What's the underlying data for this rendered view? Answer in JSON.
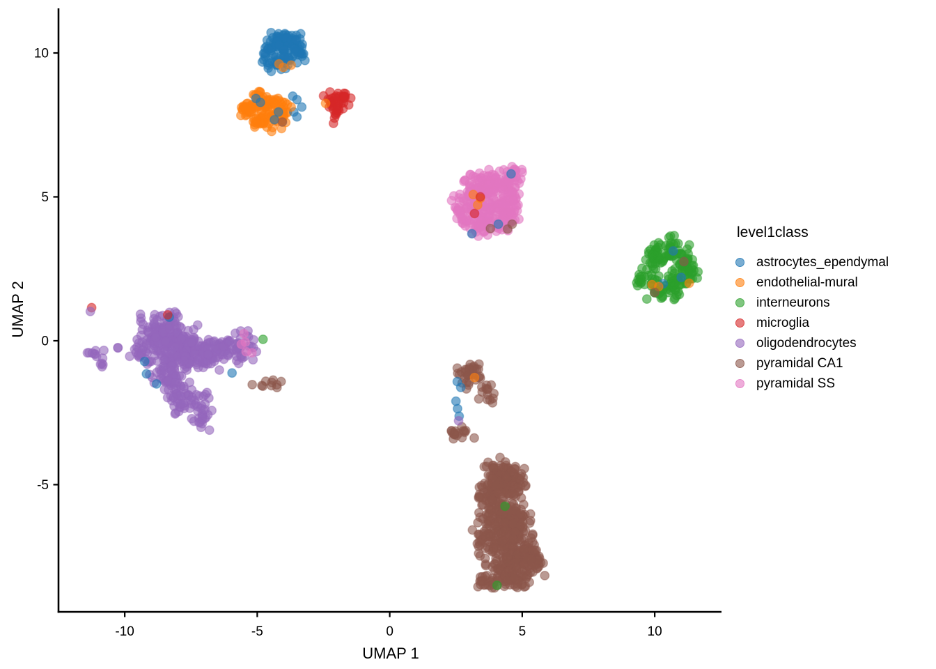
{
  "figure": {
    "background": "#ffffff"
  },
  "chart_data": {
    "type": "scatter",
    "title": "",
    "xlabel": "UMAP 1",
    "ylabel": "UMAP 2",
    "xlim": [
      -12.5,
      12.52
    ],
    "ylim": [
      -9.42,
      11.55
    ],
    "x_ticks": [
      -10,
      -5,
      0,
      5,
      10
    ],
    "y_ticks": [
      10,
      5,
      0,
      -5
    ],
    "grid": false,
    "legend_title": "level1class",
    "legend_position": "right",
    "point_alpha": 0.6,
    "point_stroke_alpha": 0.45,
    "series": [
      {
        "name": "astrocytes_ependymal",
        "color": "#1f77b4",
        "cluster_blobs": [
          [
            -4.55,
            10.05,
            0.14,
            0.32,
            28
          ],
          [
            -4.15,
            10.45,
            0.18,
            0.15,
            25
          ],
          [
            -3.8,
            10.3,
            0.22,
            0.2,
            40
          ],
          [
            -3.45,
            10.05,
            0.13,
            0.22,
            20
          ],
          [
            -4.0,
            9.75,
            0.22,
            0.14,
            22
          ]
        ],
        "scattered_points": [
          [
            -5.05,
            8.42
          ],
          [
            -4.88,
            8.28
          ],
          [
            -4.2,
            7.95
          ],
          [
            -4.35,
            7.68
          ],
          [
            -3.66,
            8.5
          ],
          [
            -3.5,
            8.38
          ],
          [
            -3.62,
            7.95
          ],
          [
            -3.5,
            7.78
          ],
          [
            -3.32,
            8.12
          ],
          [
            4.58,
            5.8
          ],
          [
            4.1,
            4.05
          ],
          [
            3.1,
            3.72
          ],
          [
            10.7,
            3.12
          ],
          [
            11.0,
            2.2
          ],
          [
            10.32,
            1.98
          ],
          [
            -9.25,
            -0.72
          ],
          [
            -9.18,
            -1.15
          ],
          [
            -8.8,
            -1.5
          ],
          [
            -5.95,
            -1.12
          ],
          [
            -8.32,
            0.82
          ],
          [
            2.55,
            -1.42
          ],
          [
            2.68,
            -1.62
          ],
          [
            2.5,
            -2.1
          ],
          [
            2.56,
            -2.36
          ],
          [
            2.62,
            -2.62
          ]
        ]
      },
      {
        "name": "endothelial-mural",
        "color": "#ff7f0e",
        "cluster_blobs": [
          [
            -5.35,
            8.1,
            0.2,
            0.16,
            25
          ],
          [
            -4.8,
            8.3,
            0.22,
            0.18,
            30
          ],
          [
            -4.55,
            7.75,
            0.28,
            0.22,
            40
          ],
          [
            -4.1,
            7.95,
            0.15,
            0.25,
            22
          ],
          [
            -5.0,
            7.55,
            0.14,
            0.1,
            10
          ],
          [
            -4.4,
            8.35,
            0.12,
            0.1,
            8
          ]
        ],
        "scattered_points": [
          [
            -4.18,
            9.62
          ],
          [
            -4.02,
            9.5
          ],
          [
            -3.72,
            9.58
          ],
          [
            -2.42,
            8.25
          ],
          [
            -3.72,
            8.12
          ],
          [
            3.15,
            5.08
          ],
          [
            3.42,
            4.95
          ],
          [
            3.32,
            4.72
          ],
          [
            11.3,
            2.0
          ],
          [
            9.9,
            1.95
          ],
          [
            10.15,
            1.88
          ],
          [
            3.2,
            -1.28
          ]
        ]
      },
      {
        "name": "interneurons",
        "color": "#2ca02c",
        "cluster_blobs": [
          [
            10.55,
            3.15,
            0.28,
            0.22,
            30
          ],
          [
            10.05,
            2.75,
            0.18,
            0.22,
            18
          ],
          [
            11.0,
            2.6,
            0.25,
            0.35,
            40
          ],
          [
            9.62,
            2.1,
            0.25,
            0.2,
            22
          ],
          [
            10.35,
            1.68,
            0.3,
            0.2,
            30
          ],
          [
            10.85,
            2.0,
            0.2,
            0.18,
            18
          ],
          [
            11.4,
            2.35,
            0.12,
            0.25,
            12
          ],
          [
            9.95,
            3.0,
            0.12,
            0.12,
            8
          ]
        ],
        "scattered_points": [
          [
            4.35,
            -5.75
          ],
          [
            4.05,
            -8.5
          ],
          [
            -4.78,
            0.05
          ]
        ]
      },
      {
        "name": "microglia",
        "color": "#d62728",
        "cluster_blobs": [
          [
            -2.28,
            8.38,
            0.12,
            0.12,
            10
          ],
          [
            -1.88,
            8.28,
            0.2,
            0.17,
            20
          ],
          [
            -2.05,
            7.85,
            0.1,
            0.16,
            8
          ],
          [
            -1.65,
            8.5,
            0.08,
            0.08,
            5
          ]
        ],
        "scattered_points": [
          [
            -11.25,
            1.15
          ],
          [
            -8.38,
            0.9
          ],
          [
            3.2,
            4.42
          ],
          [
            3.42,
            5.0
          ]
        ]
      },
      {
        "name": "oligodendrocytes",
        "color": "#9467bd",
        "cluster_blobs": [
          [
            -8.7,
            0.25,
            0.38,
            0.3,
            85
          ],
          [
            -8.0,
            -0.3,
            0.5,
            0.42,
            130
          ],
          [
            -7.15,
            -0.5,
            0.42,
            0.28,
            70
          ],
          [
            -6.3,
            -0.3,
            0.38,
            0.22,
            45
          ],
          [
            -5.55,
            -0.2,
            0.28,
            0.3,
            30
          ],
          [
            -8.45,
            -1.2,
            0.32,
            0.25,
            40
          ],
          [
            -7.7,
            -1.95,
            0.38,
            0.28,
            55
          ],
          [
            -7.1,
            -2.6,
            0.22,
            0.25,
            22
          ],
          [
            -9.35,
            -0.45,
            0.22,
            0.3,
            25
          ],
          [
            -8.15,
            0.78,
            0.14,
            0.15,
            10
          ],
          [
            -11.2,
            -0.45,
            0.2,
            0.14,
            9
          ],
          [
            -10.85,
            -0.8,
            0.1,
            0.1,
            4
          ],
          [
            -10.28,
            -0.3,
            0.04,
            0.04,
            2
          ]
        ],
        "scattered_points": [
          [
            -11.3,
            1.02
          ],
          [
            2.6,
            -2.78
          ]
        ]
      },
      {
        "name": "pyramidal CA1",
        "color": "#8c564b",
        "cluster_blobs": [
          [
            4.1,
            -4.55,
            0.28,
            0.22,
            50
          ],
          [
            4.55,
            -5.0,
            0.32,
            0.3,
            70
          ],
          [
            3.85,
            -5.35,
            0.28,
            0.3,
            55
          ],
          [
            4.2,
            -6.0,
            0.4,
            0.35,
            100
          ],
          [
            4.85,
            -6.35,
            0.28,
            0.28,
            55
          ],
          [
            4.0,
            -6.9,
            0.4,
            0.32,
            90
          ],
          [
            4.9,
            -7.3,
            0.38,
            0.3,
            80
          ],
          [
            4.4,
            -7.95,
            0.4,
            0.28,
            80
          ],
          [
            5.35,
            -7.75,
            0.22,
            0.22,
            35
          ],
          [
            3.6,
            -8.35,
            0.22,
            0.13,
            20
          ],
          [
            4.9,
            -8.3,
            0.25,
            0.13,
            25
          ],
          [
            3.05,
            -1.12,
            0.22,
            0.26,
            32
          ],
          [
            3.6,
            -1.75,
            0.16,
            0.18,
            14
          ],
          [
            2.65,
            -3.2,
            0.25,
            0.13,
            18
          ],
          [
            -4.6,
            -1.45,
            0.28,
            0.12,
            10
          ]
        ],
        "scattered_points": [
          [
            -4.05,
            7.6
          ],
          [
            3.8,
            3.9
          ],
          [
            4.45,
            3.88
          ],
          [
            4.62,
            4.05
          ],
          [
            11.1,
            2.75
          ],
          [
            10.0,
            1.68
          ],
          [
            2.55,
            -0.95
          ]
        ]
      },
      {
        "name": "pyramidal SS",
        "color": "#e377c2",
        "cluster_blobs": [
          [
            3.3,
            5.3,
            0.28,
            0.28,
            55
          ],
          [
            4.0,
            5.5,
            0.28,
            0.22,
            50
          ],
          [
            4.55,
            5.45,
            0.18,
            0.28,
            30
          ],
          [
            4.78,
            5.9,
            0.1,
            0.12,
            10
          ],
          [
            3.05,
            4.6,
            0.32,
            0.32,
            65
          ],
          [
            3.9,
            4.6,
            0.32,
            0.28,
            65
          ],
          [
            4.5,
            4.65,
            0.22,
            0.28,
            35
          ],
          [
            3.5,
            3.95,
            0.28,
            0.18,
            30
          ],
          [
            4.2,
            4.0,
            0.22,
            0.16,
            20
          ],
          [
            2.68,
            4.35,
            0.13,
            0.18,
            10
          ]
        ],
        "scattered_points": [
          [
            -5.5,
            0.25
          ],
          [
            -5.45,
            -0.05
          ],
          [
            -5.42,
            -0.38
          ],
          [
            -5.2,
            -0.42
          ],
          [
            -5.6,
            -0.12
          ]
        ]
      }
    ]
  }
}
